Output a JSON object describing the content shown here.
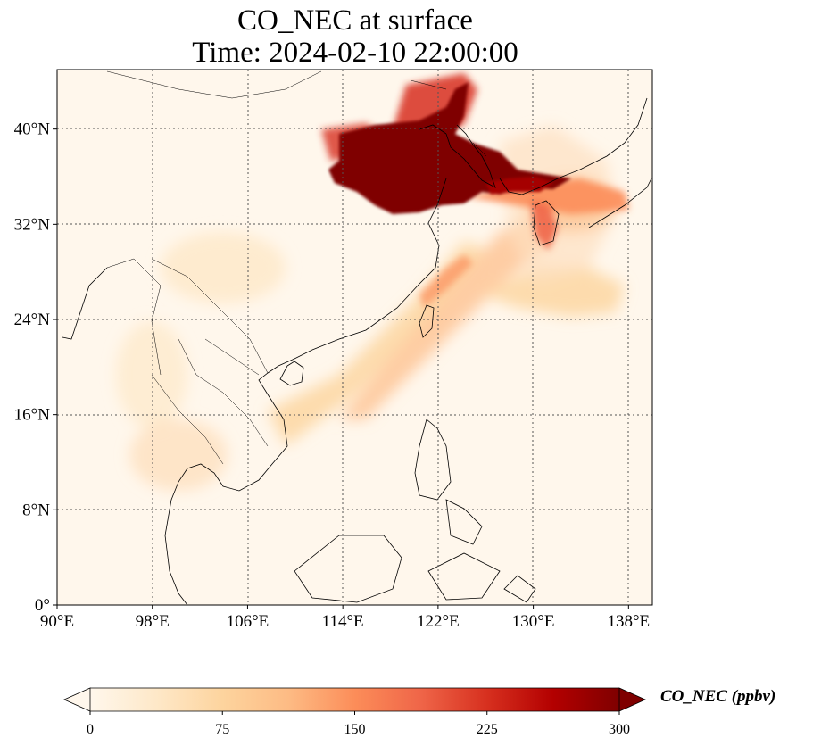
{
  "title": {
    "line1": "CO_NEC at surface",
    "line2": "Time: 2024-02-10 22:00:00"
  },
  "map": {
    "projection": "PlateCarree",
    "lon_range": [
      90,
      140
    ],
    "lat_range": [
      0,
      45
    ],
    "gridlines": true,
    "coastlines": true,
    "borders": true,
    "field_colormap": "OrRd",
    "lon_ticks": [
      {
        "value": 90,
        "label": "90°E"
      },
      {
        "value": 98,
        "label": "98°E"
      },
      {
        "value": 106,
        "label": "106°E"
      },
      {
        "value": 114,
        "label": "114°E"
      },
      {
        "value": 122,
        "label": "122°E"
      },
      {
        "value": 130,
        "label": "130°E"
      },
      {
        "value": 138,
        "label": "138°E"
      }
    ],
    "lat_ticks": [
      {
        "value": 0,
        "label": "0°"
      },
      {
        "value": 8,
        "label": "8°N"
      },
      {
        "value": 16,
        "label": "16°N"
      },
      {
        "value": 24,
        "label": "24°N"
      },
      {
        "value": 32,
        "label": "32°N"
      },
      {
        "value": 40,
        "label": "40°N"
      }
    ]
  },
  "colorbar": {
    "label": "CO_NEC (ppbv)",
    "min": 0,
    "max": 300,
    "extend": "both",
    "ticks": [
      {
        "value": 0,
        "label": "0"
      },
      {
        "value": 75,
        "label": "75"
      },
      {
        "value": 150,
        "label": "150"
      },
      {
        "value": 225,
        "label": "225"
      },
      {
        "value": 300,
        "label": "300"
      }
    ],
    "colors": [
      "#fff7ec",
      "#fee8c8",
      "#fdd49e",
      "#fdbb84",
      "#fc8d59",
      "#ef6548",
      "#d7301f",
      "#b30000",
      "#7f0000"
    ]
  }
}
